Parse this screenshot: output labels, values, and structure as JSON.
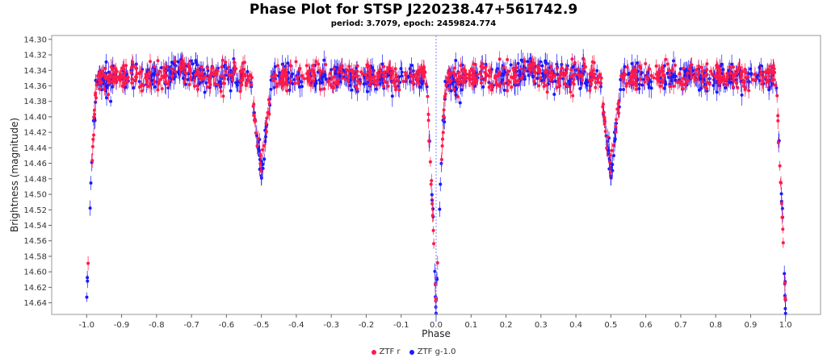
{
  "title": "Phase Plot for STSP J220238.47+561742.9",
  "subtitle": "period: 3.7079, epoch: 2459824.774",
  "chart_data": {
    "type": "scatter",
    "xlabel": "Phase",
    "ylabel": "Brightness (magnitude)",
    "xlim": [
      -1.1,
      1.1
    ],
    "ylim": [
      14.295,
      14.655
    ],
    "y_inverted": true,
    "x_ticks": [
      "-1.0",
      "-0.9",
      "-0.8",
      "-0.7",
      "-0.6",
      "-0.5",
      "-0.4",
      "-0.3",
      "-0.2",
      "-0.1",
      "0.0",
      "0.1",
      "0.2",
      "0.3",
      "0.4",
      "0.5",
      "0.6",
      "0.7",
      "0.8",
      "0.9",
      "1.0"
    ],
    "y_ticks": [
      "14.30",
      "14.32",
      "14.34",
      "14.36",
      "14.38",
      "14.40",
      "14.42",
      "14.44",
      "14.46",
      "14.48",
      "14.50",
      "14.52",
      "14.54",
      "14.56",
      "14.58",
      "14.60",
      "14.62",
      "14.64"
    ],
    "error_bars": true,
    "grid": false,
    "legend_position": "bottom-center",
    "vertical_marker_at_x": 0.0,
    "light_curve": {
      "baseline": 14.348,
      "primary_eclipse_phase": 0.0,
      "primary_eclipse_depth_mag": 14.645,
      "secondary_eclipse_phase": 0.5,
      "secondary_eclipse_depth_mag": 14.47,
      "brighter_hump_phase": 0.27,
      "brighter_hump_mag": 14.315
    },
    "series": [
      {
        "name": "ZTF r",
        "color": "#ff1a4a",
        "marker": "circle"
      },
      {
        "name": "ZTF g-1.0",
        "color": "#1a1aff",
        "marker": "circle"
      }
    ]
  },
  "legend": [
    {
      "label": "ZTF r",
      "color": "#ff1a4a"
    },
    {
      "label": "ZTF g-1.0",
      "color": "#1a1aff"
    }
  ]
}
